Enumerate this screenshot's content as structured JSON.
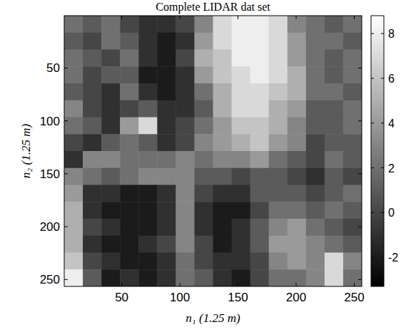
{
  "chart_data": {
    "type": "heatmap",
    "title": "Complete LIDAR dat set",
    "x_label": "n₁ (1.25 m)",
    "y_label": "n₂ (1.25 m)",
    "xlim": [
      0.5,
      256.5
    ],
    "ylim": [
      256.5,
      0.5
    ],
    "xticks": [
      50,
      100,
      150,
      200,
      250
    ],
    "yticks": [
      50,
      100,
      150,
      200,
      250
    ],
    "x": [
      8.5,
      24.5,
      40.5,
      56.5,
      72.5,
      88.5,
      104.5,
      120.5,
      136.5,
      152.5,
      168.5,
      184.5,
      200.5,
      216.5,
      232.5,
      248.5
    ],
    "y": [
      8.5,
      24.5,
      40.5,
      56.5,
      72.5,
      88.5,
      104.5,
      120.5,
      136.5,
      152.5,
      168.5,
      184.5,
      200.5,
      216.5,
      232.5,
      248.5
    ],
    "z": [
      [
        2,
        1,
        2,
        0,
        -1,
        -1,
        0,
        3,
        7,
        8,
        8,
        7,
        3,
        2,
        1,
        2
      ],
      [
        1,
        0,
        2,
        1,
        -1,
        -2,
        -1,
        4,
        7,
        8,
        8,
        7,
        4,
        2,
        2,
        1
      ],
      [
        2,
        1,
        0,
        2,
        -1,
        -2,
        0,
        5,
        6,
        8,
        8,
        7,
        4,
        2,
        1,
        2
      ],
      [
        2,
        0,
        1,
        1,
        -2,
        -2,
        -1,
        4,
        6,
        7,
        8,
        7,
        5,
        2,
        1,
        2
      ],
      [
        1,
        0,
        -1,
        2,
        -1,
        -2,
        -1,
        2,
        5,
        7,
        7,
        6,
        5,
        2,
        2,
        1
      ],
      [
        3,
        0,
        -1,
        0,
        1,
        -1,
        -1,
        1,
        5,
        7,
        7,
        5,
        4,
        1,
        1,
        2
      ],
      [
        2,
        1,
        -1,
        4,
        7,
        -1,
        0,
        2,
        4,
        6,
        6,
        5,
        3,
        1,
        1,
        2
      ],
      [
        0,
        -1,
        1,
        2,
        1,
        -1,
        0,
        3,
        4,
        5,
        6,
        4,
        3,
        0,
        1,
        1
      ],
      [
        -1,
        3,
        3,
        2,
        2,
        2,
        3,
        2,
        3,
        3,
        4,
        2,
        1,
        0,
        2,
        1
      ],
      [
        3,
        2,
        1,
        2,
        3,
        3,
        3,
        1,
        1,
        0,
        1,
        1,
        0,
        -1,
        1,
        0
      ],
      [
        4,
        -1,
        -1,
        -2,
        -2,
        -1,
        3,
        0,
        -1,
        -1,
        1,
        1,
        1,
        0,
        1,
        2
      ],
      [
        5,
        -1,
        -2,
        -2,
        -2,
        -1,
        3,
        -1,
        -2,
        -2,
        0,
        2,
        2,
        1,
        2,
        1
      ],
      [
        5,
        0,
        -1,
        -2,
        -2,
        -1,
        3,
        -1,
        -2,
        -1,
        1,
        3,
        4,
        2,
        1,
        0
      ],
      [
        5,
        -1,
        -2,
        -2,
        -1,
        0,
        3,
        0,
        -2,
        -1,
        1,
        4,
        4,
        3,
        2,
        1
      ],
      [
        6,
        0,
        -1,
        -2,
        -2,
        -1,
        2,
        0,
        -1,
        -1,
        0,
        3,
        4,
        3,
        7,
        3
      ],
      [
        8,
        1,
        -2,
        -1,
        -2,
        -1,
        2,
        1,
        -1,
        -2,
        0,
        2,
        2,
        3,
        7,
        2
      ]
    ],
    "colorbar": {
      "range": [
        -3.3,
        8.8
      ],
      "ticks": [
        -2,
        0,
        2,
        4,
        6,
        8
      ]
    }
  }
}
